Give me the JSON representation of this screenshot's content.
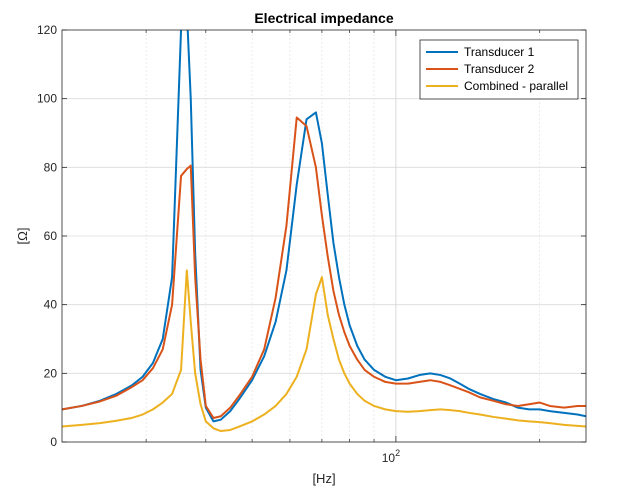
{
  "chart_data": {
    "type": "line",
    "title": "Electrical impedance",
    "xlabel": "[Hz]",
    "ylabel": "[Ω]",
    "xscale": "log",
    "xlim": [
      20,
      250
    ],
    "ylim": [
      0,
      120
    ],
    "yticks": [
      0,
      20,
      40,
      60,
      80,
      100,
      120
    ],
    "xtick_label": "10",
    "xtick_label_exp": "2",
    "grid": true,
    "legend_position": "top-right",
    "series": [
      {
        "name": "Transducer 1",
        "color": "#0072BD",
        "x": [
          20,
          22,
          24,
          26,
          28,
          29.5,
          31,
          32.5,
          34,
          35.5,
          36.5,
          37.2,
          38,
          39,
          40,
          41.5,
          43,
          45,
          47,
          50,
          53,
          56,
          59,
          62,
          65,
          68,
          70,
          72,
          74,
          76,
          78,
          80,
          83,
          86,
          90,
          95,
          100,
          106,
          112,
          118,
          124,
          130,
          136,
          142,
          150,
          160,
          170,
          180,
          190,
          200,
          210,
          225,
          240,
          250
        ],
        "y": [
          9.5,
          10.5,
          12,
          14,
          16.5,
          19,
          23,
          30,
          48,
          120,
          126,
          100,
          55,
          21,
          10,
          6,
          6.5,
          9,
          12.5,
          18,
          25,
          35,
          50,
          75,
          94,
          96,
          87,
          72,
          58,
          48,
          40,
          34,
          28,
          24,
          21,
          19,
          18,
          18.5,
          19.5,
          20,
          19.5,
          18.5,
          17,
          15.5,
          14,
          12.5,
          11.5,
          10,
          9.5,
          9.5,
          9,
          8.5,
          8,
          7.5
        ]
      },
      {
        "name": "Transducer 2",
        "color": "#D95319",
        "x": [
          20,
          22,
          24,
          26,
          28,
          29.5,
          31,
          32.5,
          34,
          35.5,
          36.5,
          37.2,
          38,
          39,
          40,
          41.5,
          43,
          45,
          47,
          50,
          53,
          56,
          59,
          62,
          65,
          68,
          70,
          72,
          74,
          76,
          78,
          80,
          83,
          86,
          90,
          95,
          100,
          106,
          112,
          118,
          124,
          130,
          136,
          142,
          150,
          160,
          170,
          180,
          190,
          200,
          210,
          225,
          240,
          250
        ],
        "y": [
          9.5,
          10.5,
          11.8,
          13.5,
          16,
          18,
          21.5,
          27,
          40,
          77.5,
          79.5,
          80.5,
          48,
          24,
          10.5,
          7,
          7.5,
          10,
          13.5,
          19,
          27,
          42,
          63,
          94.5,
          92,
          80,
          66,
          54,
          44,
          37,
          32,
          28,
          24,
          21,
          19,
          17.5,
          17,
          17,
          17.5,
          18,
          17.5,
          16.5,
          15.5,
          14.5,
          13,
          12,
          11,
          10.5,
          11,
          11.5,
          10.5,
          10,
          10.5,
          10.5
        ]
      },
      {
        "name": "Combined - parallel",
        "color": "#EDB120",
        "x": [
          20,
          22,
          24,
          26,
          28,
          29.5,
          31,
          32.5,
          34,
          35.5,
          36.5,
          37.2,
          38,
          39,
          40,
          41.5,
          43,
          45,
          47,
          50,
          53,
          56,
          59,
          62,
          65,
          68,
          70,
          72,
          74,
          76,
          78,
          80,
          83,
          86,
          90,
          95,
          100,
          106,
          112,
          118,
          124,
          130,
          136,
          142,
          150,
          160,
          170,
          180,
          190,
          200,
          210,
          225,
          240,
          250
        ],
        "y": [
          4.5,
          5,
          5.5,
          6.2,
          7,
          8,
          9.5,
          11.5,
          14,
          21,
          50,
          35,
          20,
          11,
          6,
          4,
          3.2,
          3.5,
          4.5,
          6,
          8,
          10.5,
          14,
          19,
          27,
          43,
          48,
          37,
          30,
          24,
          20,
          17,
          14,
          12,
          10.5,
          9.5,
          9,
          8.8,
          9,
          9.3,
          9.5,
          9.3,
          9,
          8.5,
          8,
          7.3,
          6.8,
          6.3,
          6,
          5.8,
          5.5,
          5,
          4.7,
          4.5
        ]
      }
    ]
  }
}
